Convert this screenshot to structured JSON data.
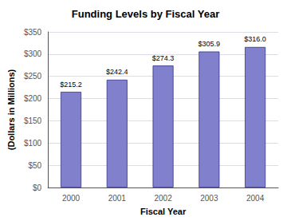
{
  "chart_data": {
    "type": "bar",
    "title": "Funding Levels by Fiscal Year",
    "xlabel": "Fiscal Year",
    "ylabel": "(Dollars in Millions)",
    "categories": [
      "2000",
      "2001",
      "2002",
      "2003",
      "2004"
    ],
    "values": [
      215.2,
      242.4,
      274.3,
      305.9,
      316.0
    ],
    "value_labels": [
      "$215.2",
      "$242.4",
      "$274.3",
      "$305.9",
      "$316.0"
    ],
    "data_labels": true,
    "color": "#8080cc",
    "ylim": [
      0,
      350
    ],
    "yticks": [
      {
        "value": 0,
        "label": "$0"
      },
      {
        "value": 50,
        "label": "$50"
      },
      {
        "value": 100,
        "label": "$100"
      },
      {
        "value": 150,
        "label": "$150"
      },
      {
        "value": 200,
        "label": "$200"
      },
      {
        "value": 250,
        "label": "$250"
      },
      {
        "value": 300,
        "label": "$300"
      },
      {
        "value": 350,
        "label": "$350"
      }
    ],
    "grid": true
  }
}
